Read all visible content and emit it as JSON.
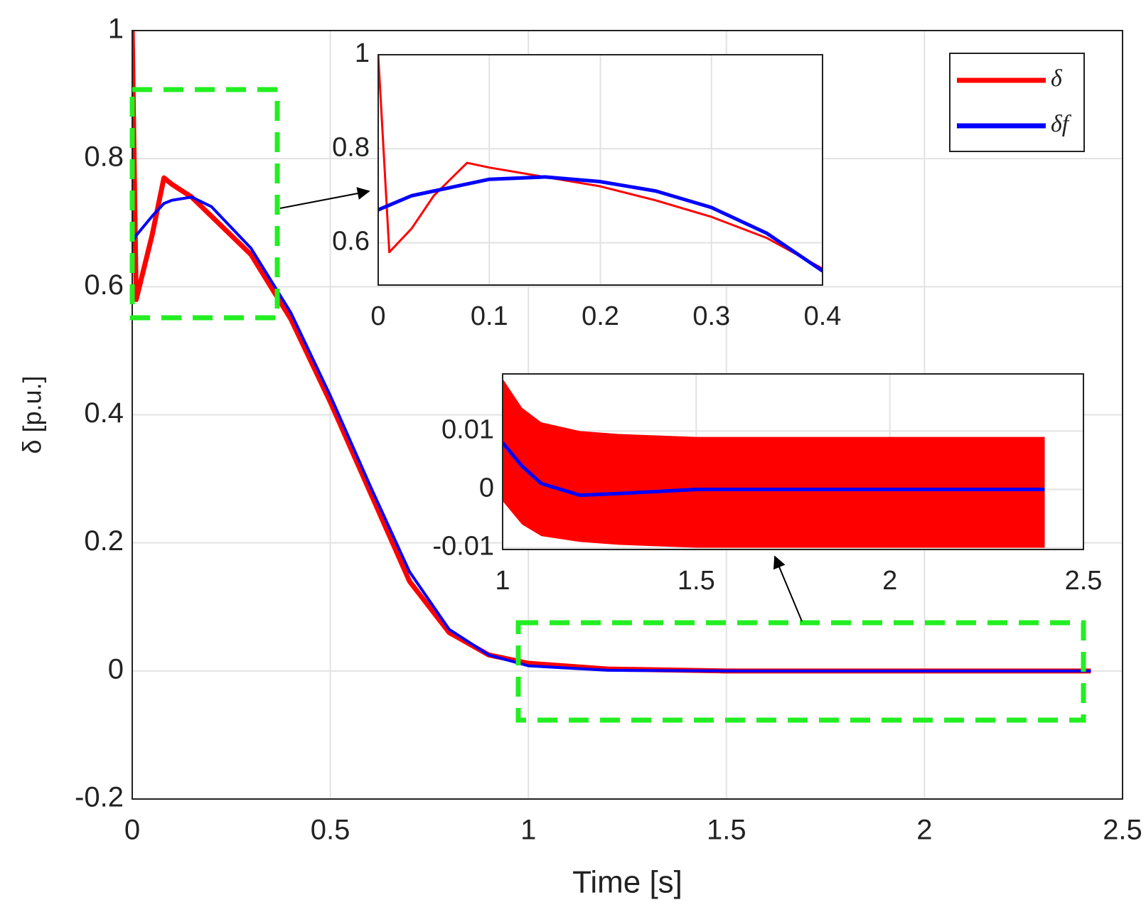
{
  "chart_data": [
    {
      "type": "line",
      "xlabel": "Time [s]",
      "ylabel": "δ [p.u.]",
      "x": [
        0,
        0.01,
        0.05,
        0.08,
        0.1,
        0.15,
        0.2,
        0.3,
        0.4,
        0.5,
        0.6,
        0.7,
        0.8,
        0.9,
        1.0,
        1.2,
        1.5,
        2.0,
        2.42
      ],
      "series": [
        {
          "name": "δ",
          "color": "#ff0000",
          "values": [
            1.0,
            0.58,
            0.68,
            0.77,
            0.76,
            0.74,
            0.71,
            0.65,
            0.55,
            0.42,
            0.28,
            0.14,
            0.06,
            0.025,
            0.012,
            0.003,
            0,
            0,
            0
          ]
        },
        {
          "name": "δf",
          "color": "#0000ff",
          "values": [
            0.67,
            0.68,
            0.71,
            0.73,
            0.735,
            0.74,
            0.725,
            0.66,
            0.56,
            0.43,
            0.29,
            0.155,
            0.065,
            0.025,
            0.008,
            0.001,
            0,
            0,
            0
          ]
        }
      ],
      "xlim": [
        0,
        2.5
      ],
      "xticks": [
        0,
        0.5,
        1,
        1.5,
        2,
        2.5
      ],
      "ylim": [
        -0.2,
        1
      ],
      "yticks": [
        -0.2,
        0,
        0.2,
        0.4,
        0.6,
        0.8,
        1
      ],
      "grid": true,
      "legend": "upper right"
    },
    {
      "type": "line",
      "x": [
        0,
        0.01,
        0.03,
        0.05,
        0.08,
        0.1,
        0.15,
        0.2,
        0.25,
        0.3,
        0.35,
        0.4
      ],
      "series": [
        {
          "color": "#ff0000",
          "values": [
            1.0,
            0.58,
            0.63,
            0.7,
            0.77,
            0.76,
            0.74,
            0.72,
            0.69,
            0.655,
            0.61,
            0.545
          ]
        },
        {
          "color": "#0000ff",
          "values": [
            0.67,
            0.68,
            0.7,
            0.71,
            0.725,
            0.735,
            0.74,
            0.73,
            0.71,
            0.675,
            0.62,
            0.54
          ]
        }
      ],
      "xlim": [
        0,
        0.4
      ],
      "xticks": [
        0,
        0.1,
        0.2,
        0.3,
        0.4
      ],
      "ylim": [
        0.51,
        1
      ],
      "yticks": [
        0.6,
        0.8,
        1
      ],
      "grid": true
    },
    {
      "type": "line",
      "x": [
        1,
        1.05,
        1.1,
        1.2,
        1.3,
        1.5,
        1.8,
        2.0,
        2.2,
        2.4
      ],
      "series": [
        {
          "color": "#ff0000",
          "upper": [
            0.019,
            0.014,
            0.0115,
            0.01,
            0.0095,
            0.009,
            0.009,
            0.009,
            0.009,
            0.009
          ],
          "lower": [
            -0.002,
            -0.006,
            -0.008,
            -0.009,
            -0.0095,
            -0.01,
            -0.01,
            -0.01,
            -0.01,
            -0.01
          ]
        },
        {
          "color": "#0000ff",
          "values": [
            0.008,
            0.004,
            0.001,
            -0.001,
            -0.0007,
            0,
            0,
            0,
            0,
            0
          ]
        }
      ],
      "xlim": [
        1,
        2.5
      ],
      "xticks": [
        1,
        1.5,
        2,
        2.5
      ],
      "ylim": [
        -0.0103,
        0.0198
      ],
      "yticks": [
        -0.01,
        0,
        0.01
      ],
      "grid": true
    }
  ]
}
